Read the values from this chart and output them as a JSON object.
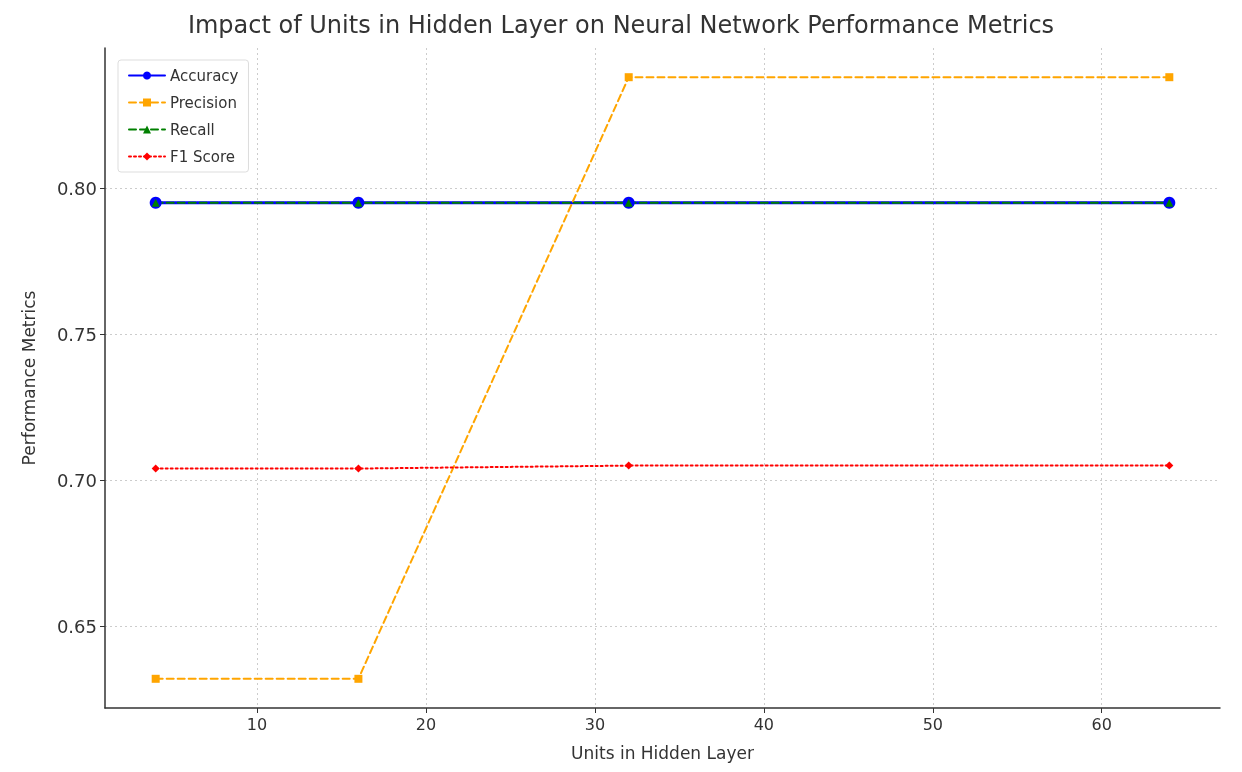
{
  "chart_data": {
    "type": "line",
    "title": "Impact of Units in Hidden Layer on Neural Network Performance Metrics",
    "xlabel": "Units in Hidden Layer",
    "ylabel": "Performance Metrics",
    "x": [
      4,
      16,
      32,
      64
    ],
    "series": [
      {
        "name": "Accuracy",
        "color": "#0000ff",
        "values": [
          0.795,
          0.795,
          0.795,
          0.795
        ],
        "marker": "circle",
        "line_style": "solid"
      },
      {
        "name": "Precision",
        "color": "#ffa500",
        "values": [
          0.632,
          0.632,
          0.838,
          0.838
        ],
        "marker": "square",
        "line_style": "dashed"
      },
      {
        "name": "Recall",
        "color": "#008000",
        "values": [
          0.795,
          0.795,
          0.795,
          0.795
        ],
        "marker": "triangle",
        "line_style": "dashed"
      },
      {
        "name": "F1 Score",
        "color": "#ff0000",
        "values": [
          0.704,
          0.704,
          0.705,
          0.705
        ],
        "marker": "diamond",
        "line_style": "dotted"
      }
    ],
    "xlim": [
      1,
      67
    ],
    "xticks": [
      10,
      20,
      30,
      40,
      50,
      60
    ],
    "ylim": [
      0.622,
      0.848
    ],
    "yticks": [
      {
        "value": 0.65,
        "label": "0.65"
      },
      {
        "value": 0.7,
        "label": "0.70"
      },
      {
        "value": 0.75,
        "label": "0.75"
      },
      {
        "value": 0.8,
        "label": "0.80"
      }
    ],
    "grid": true,
    "legend": "top left"
  }
}
